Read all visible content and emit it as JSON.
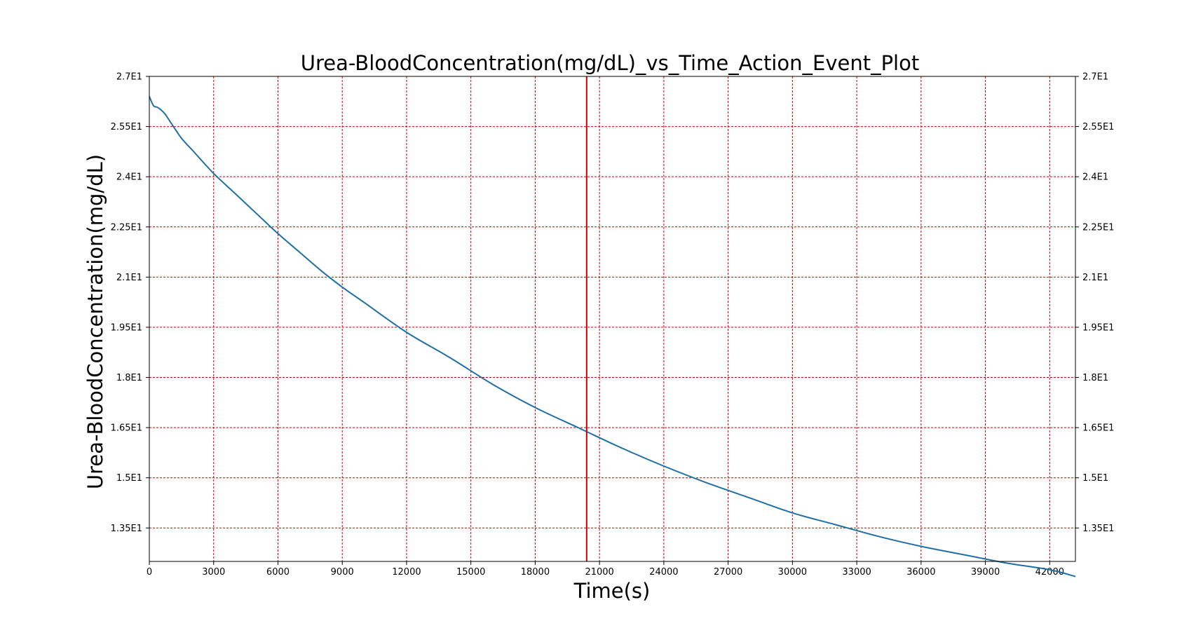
{
  "chart_data": {
    "type": "line",
    "title": "Urea-BloodConcentration(mg/dL)_vs_Time_Action_Event_Plot",
    "xlabel": "Time(s)",
    "ylabel": "Urea-BloodConcentration(mg/dL)",
    "xlim": [
      0,
      43200
    ],
    "ylim": [
      12.5,
      27.0
    ],
    "x_ticks": [
      0,
      3000,
      6000,
      9000,
      12000,
      15000,
      18000,
      21000,
      24000,
      27000,
      30000,
      33000,
      36000,
      39000,
      42000
    ],
    "x_tick_labels": [
      "0",
      "3000",
      "6000",
      "9000",
      "12000",
      "15000",
      "18000",
      "21000",
      "24000",
      "27000",
      "30000",
      "33000",
      "36000",
      "39000",
      "42000"
    ],
    "y_ticks": [
      13.5,
      15.0,
      16.5,
      18.0,
      19.5,
      21.0,
      22.5,
      24.0,
      25.5,
      27.0
    ],
    "y_tick_labels": [
      "1.35E1",
      "1.5E1",
      "1.65E1",
      "1.8E1",
      "1.95E1",
      "2.1E1",
      "2.25E1",
      "2.4E1",
      "2.55E1",
      "2.7E1"
    ],
    "right_axis_mirrored": true,
    "grid": true,
    "series": [
      {
        "color": "#1f6fa5",
        "x": [
          0,
          200,
          400,
          700,
          1000,
          1500,
          2000,
          3000,
          4000,
          5000,
          6000,
          7000,
          8000,
          9000,
          10000,
          12000,
          14000,
          16000,
          18000,
          20000,
          22000,
          24000,
          26000,
          28000,
          30000,
          32000,
          34000,
          36000,
          38000,
          40000,
          42000,
          43200
        ],
        "y": [
          26.4,
          26.12,
          26.07,
          25.9,
          25.62,
          25.15,
          24.8,
          24.1,
          23.5,
          22.9,
          22.3,
          21.75,
          21.2,
          20.7,
          20.25,
          19.35,
          18.6,
          17.8,
          17.1,
          16.5,
          15.9,
          15.35,
          14.85,
          14.4,
          13.95,
          13.6,
          13.25,
          12.95,
          12.7,
          12.45,
          12.25,
          12.05
        ]
      }
    ],
    "events": [
      {
        "x": 20400,
        "color": "#cc0000"
      }
    ],
    "colors": {
      "grid": "#cc0000",
      "series": "#1f6fa5",
      "event": "#cc0000"
    }
  }
}
